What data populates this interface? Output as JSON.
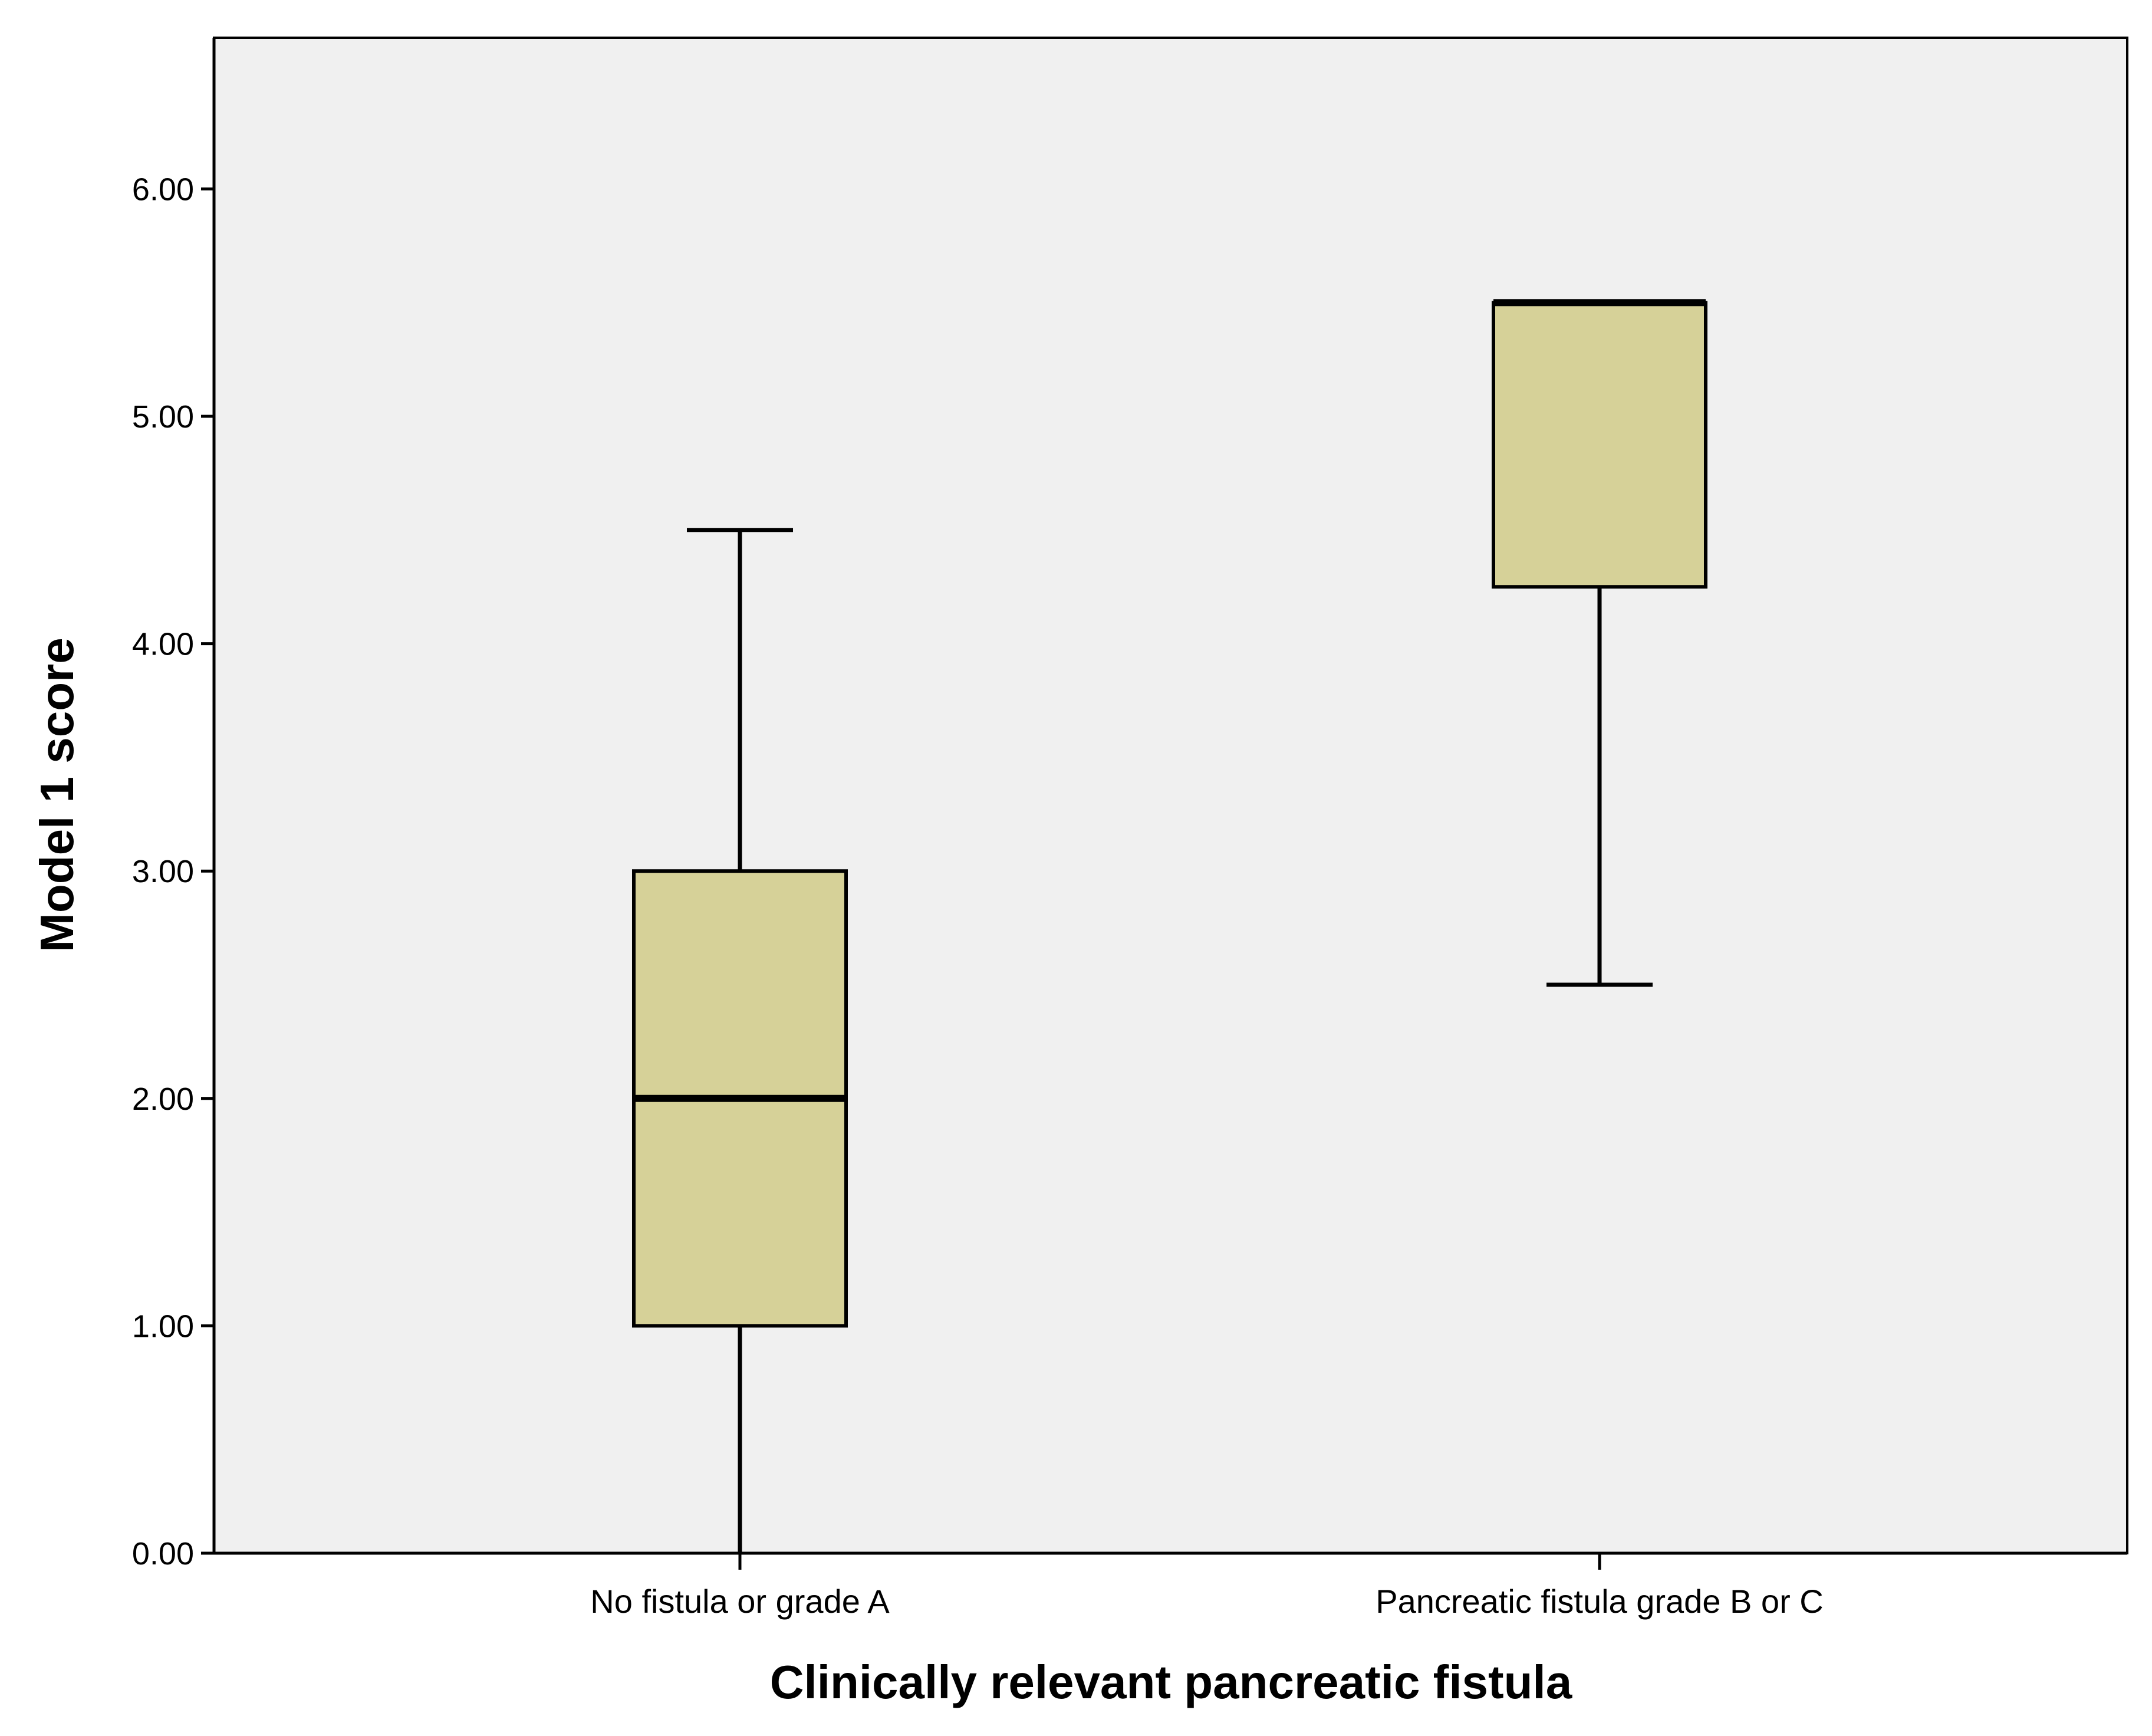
{
  "chart_data": {
    "type": "boxplot",
    "xlabel": "Clinically relevant pancreatic fistula",
    "ylabel": "Model 1 score",
    "ylim": [
      0,
      6.65
    ],
    "yticks": [
      0,
      1,
      2,
      3,
      4,
      5,
      6
    ],
    "ytick_labels": [
      "0.00",
      "1.00",
      "2.00",
      "3.00",
      "4.00",
      "5.00",
      "6.00"
    ],
    "categories": [
      "No fistula or grade A",
      "Pancreatic fistula grade B or C"
    ],
    "boxes": [
      {
        "category": "No fistula or grade A",
        "whisker_low": 0.0,
        "q1": 1.0,
        "median": 2.0,
        "q3": 3.0,
        "whisker_high": 4.5
      },
      {
        "category": "Pancreatic fistula grade B or C",
        "whisker_low": 2.5,
        "q1": 4.25,
        "median": 5.5,
        "q3": 5.5,
        "whisker_high": 5.5
      }
    ],
    "grid": false,
    "legend": "none",
    "colors": {
      "plot_background": "#f0f0f0",
      "box_fill": "#d6d198",
      "stroke": "#000000"
    }
  }
}
